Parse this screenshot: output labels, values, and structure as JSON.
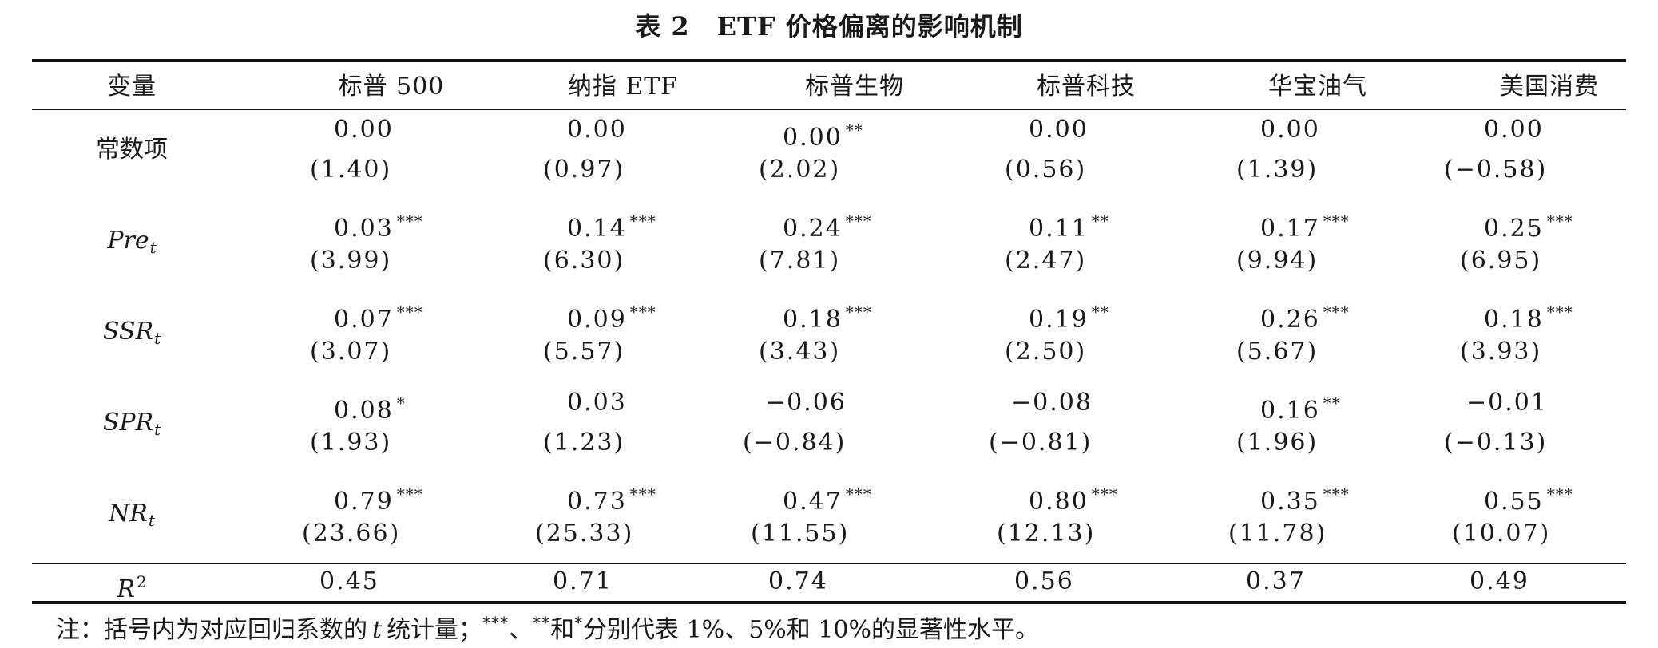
{
  "caption": {
    "label": "表 2",
    "title": "ETF 价格偏离的影响机制"
  },
  "header": {
    "variable": "变量",
    "columns": [
      "标普 500",
      "纳指 ETF",
      "标普生物",
      "标普科技",
      "华宝油气",
      "美国消费"
    ]
  },
  "rows": [
    {
      "label": "常数项",
      "coef": [
        "0.00",
        "0.00",
        "0.00",
        "0.00",
        "0.00",
        "0.00"
      ],
      "stars": [
        "",
        "",
        "**",
        "",
        "",
        ""
      ],
      "tstat": [
        "(1.40)",
        "(0.97)",
        "(2.02)",
        "(0.56)",
        "(1.39)",
        "(−0.58)"
      ]
    },
    {
      "var": "Pre",
      "sub": "t",
      "coef": [
        "0.03",
        "0.14",
        "0.24",
        "0.11",
        "0.17",
        "0.25"
      ],
      "stars": [
        "***",
        "***",
        "***",
        "**",
        "***",
        "***"
      ],
      "tstat": [
        "(3.99)",
        "(6.30)",
        "(7.81)",
        "(2.47)",
        "(9.94)",
        "(6.95)"
      ]
    },
    {
      "var": "SSR",
      "sub": "t",
      "coef": [
        "0.07",
        "0.09",
        "0.18",
        "0.19",
        "0.26",
        "0.18"
      ],
      "stars": [
        "***",
        "***",
        "***",
        "**",
        "***",
        "***"
      ],
      "tstat": [
        "(3.07)",
        "(5.57)",
        "(3.43)",
        "(2.50)",
        "(5.67)",
        "(3.93)"
      ]
    },
    {
      "var": "SPR",
      "sub": "t",
      "coef": [
        "0.08",
        "0.03",
        "−0.06",
        "−0.08",
        "0.16",
        "−0.01"
      ],
      "stars": [
        "*",
        "",
        "",
        "",
        "**",
        ""
      ],
      "tstat": [
        "(1.93)",
        "(1.23)",
        "(−0.84)",
        "(−0.81)",
        "(1.96)",
        "(−0.13)"
      ]
    },
    {
      "var": "NR",
      "sub": "t",
      "coef": [
        "0.79",
        "0.73",
        "0.47",
        "0.80",
        "0.35",
        "0.55"
      ],
      "stars": [
        "***",
        "***",
        "***",
        "***",
        "***",
        "***"
      ],
      "tstat": [
        "(23.66)",
        "(25.33)",
        "(11.55)",
        "(12.13)",
        "(11.78)",
        "(10.07)"
      ]
    }
  ],
  "r2": {
    "var": "R",
    "sup": "2",
    "values": [
      "0.45",
      "0.71",
      "0.74",
      "0.56",
      "0.37",
      "0.49"
    ]
  },
  "note": {
    "prefix": "注：括号内为对应回归系数的",
    "t": "t",
    "mid1": "统计量；",
    "s3": "***",
    "sep1": "、",
    "s2": "**",
    "and": "和",
    "s1": "*",
    "suffix": "分别代表 1%、5%和 10%的显著性水平。"
  }
}
